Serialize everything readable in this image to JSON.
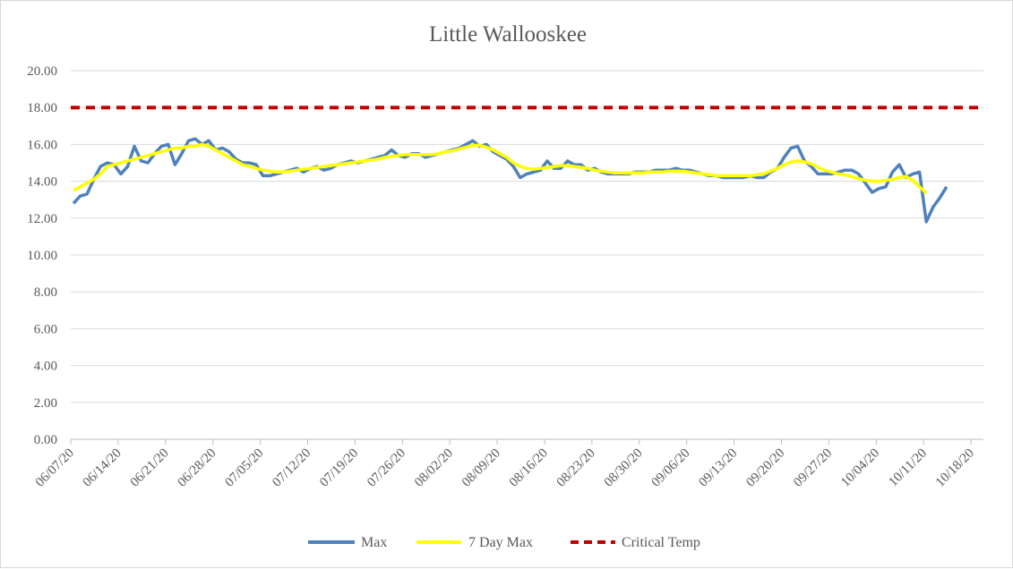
{
  "chart_data": {
    "type": "line",
    "title": "Little Wallooskee",
    "xlabel": "",
    "ylabel": "",
    "ylim": [
      0,
      20
    ],
    "yticks": [
      "0.00",
      "2.00",
      "4.00",
      "6.00",
      "8.00",
      "10.00",
      "12.00",
      "14.00",
      "16.00",
      "18.00",
      "20.00"
    ],
    "xticks": [
      "06/07/20",
      "06/14/20",
      "06/21/20",
      "06/28/20",
      "07/05/20",
      "07/12/20",
      "07/19/20",
      "07/26/20",
      "08/02/20",
      "08/09/20",
      "08/16/20",
      "08/23/20",
      "08/30/20",
      "09/06/20",
      "09/13/20",
      "09/20/20",
      "09/27/20",
      "10/04/20",
      "10/11/20",
      "10/18/20"
    ],
    "x_start": "06/07/20",
    "x_end": "10/20/20",
    "grid": true,
    "legend_position": "bottom",
    "series": [
      {
        "name": "Max",
        "color": "#4f81bd",
        "values": [
          12.8,
          13.2,
          13.3,
          14.1,
          14.8,
          15.0,
          14.9,
          14.4,
          14.8,
          15.9,
          15.1,
          15.0,
          15.5,
          15.9,
          16.0,
          14.9,
          15.5,
          16.2,
          16.3,
          16.0,
          16.2,
          15.7,
          15.8,
          15.6,
          15.2,
          15.0,
          15.0,
          14.9,
          14.3,
          14.3,
          14.4,
          14.5,
          14.6,
          14.7,
          14.5,
          14.7,
          14.8,
          14.6,
          14.7,
          14.9,
          15.0,
          15.1,
          15.0,
          15.1,
          15.2,
          15.3,
          15.4,
          15.7,
          15.4,
          15.3,
          15.5,
          15.5,
          15.3,
          15.4,
          15.5,
          15.6,
          15.7,
          15.8,
          16.0,
          16.2,
          15.9,
          16.0,
          15.6,
          15.4,
          15.2,
          14.8,
          14.2,
          14.4,
          14.5,
          14.6,
          15.1,
          14.7,
          14.7,
          15.1,
          14.9,
          14.9,
          14.6,
          14.7,
          14.5,
          14.4,
          14.4,
          14.4,
          14.4,
          14.5,
          14.5,
          14.5,
          14.6,
          14.6,
          14.6,
          14.7,
          14.6,
          14.6,
          14.5,
          14.4,
          14.3,
          14.3,
          14.2,
          14.2,
          14.2,
          14.2,
          14.3,
          14.2,
          14.2,
          14.5,
          14.7,
          15.3,
          15.8,
          15.9,
          15.1,
          14.8,
          14.4,
          14.4,
          14.4,
          14.5,
          14.6,
          14.6,
          14.4,
          13.9,
          13.4,
          13.6,
          13.7,
          14.5,
          14.9,
          14.2,
          14.4,
          14.5,
          11.8,
          12.6,
          13.1,
          13.7
        ],
        "note_values_are_daily": true
      },
      {
        "name": "7 Day Max",
        "color": "#ffff00",
        "values": [
          13.5,
          13.7,
          13.9,
          14.1,
          14.4,
          14.8,
          14.9,
          15.0,
          15.1,
          15.2,
          15.3,
          15.4,
          15.5,
          15.6,
          15.7,
          15.8,
          15.8,
          15.9,
          15.9,
          16.0,
          15.9,
          15.7,
          15.5,
          15.3,
          15.1,
          14.9,
          14.8,
          14.7,
          14.6,
          14.55,
          14.5,
          14.5,
          14.55,
          14.6,
          14.65,
          14.7,
          14.75,
          14.8,
          14.85,
          14.9,
          14.95,
          15.0,
          15.05,
          15.1,
          15.15,
          15.2,
          15.3,
          15.35,
          15.4,
          15.45,
          15.45,
          15.45,
          15.45,
          15.45,
          15.5,
          15.6,
          15.65,
          15.75,
          15.85,
          15.95,
          15.95,
          15.85,
          15.7,
          15.5,
          15.3,
          15.0,
          14.8,
          14.7,
          14.65,
          14.7,
          14.75,
          14.8,
          14.85,
          14.85,
          14.8,
          14.75,
          14.7,
          14.6,
          14.55,
          14.5,
          14.45,
          14.45,
          14.45,
          14.45,
          14.45,
          14.5,
          14.5,
          14.5,
          14.55,
          14.55,
          14.55,
          14.5,
          14.45,
          14.4,
          14.35,
          14.3,
          14.3,
          14.3,
          14.3,
          14.3,
          14.3,
          14.35,
          14.4,
          14.55,
          14.7,
          14.9,
          15.05,
          15.1,
          15.05,
          14.95,
          14.75,
          14.6,
          14.5,
          14.4,
          14.35,
          14.25,
          14.15,
          14.05,
          14.0,
          14.0,
          14.05,
          14.1,
          14.2,
          14.25,
          14.05,
          13.7,
          13.35
        ],
        "note_values_are_daily": true
      },
      {
        "name": "Critical Temp",
        "color": "#c00000",
        "dashed": true,
        "constant": 18.0
      }
    ]
  }
}
